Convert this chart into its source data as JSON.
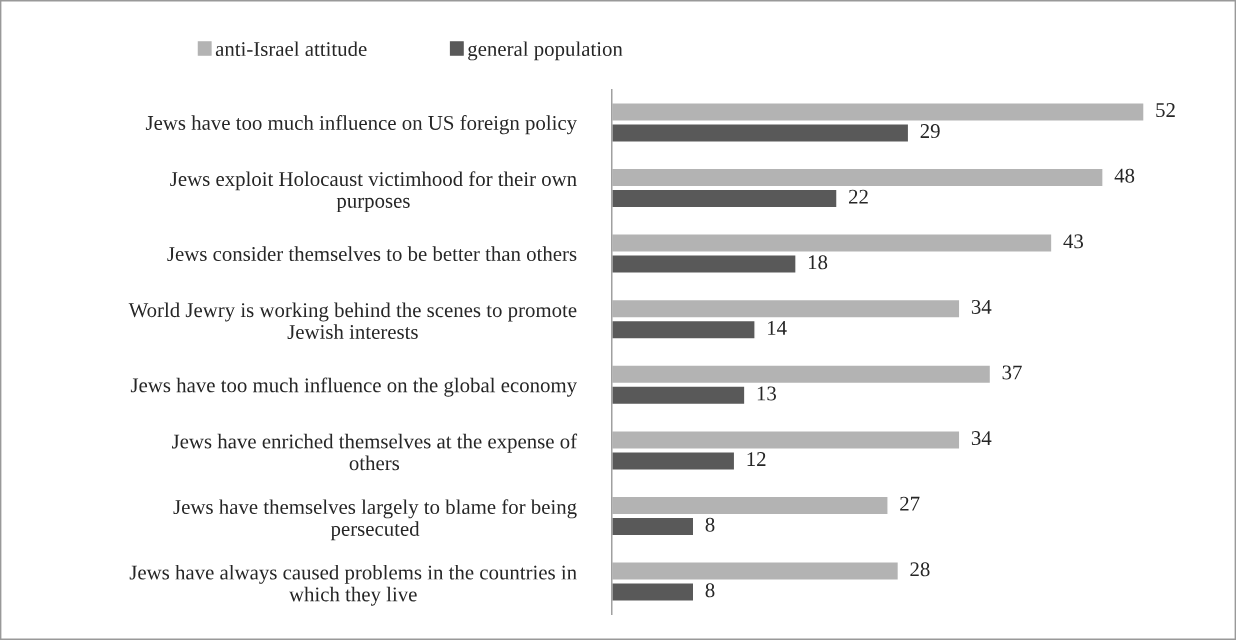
{
  "chart_data": {
    "type": "bar",
    "orientation": "horizontal",
    "categories": [
      "Jews have too much influence on US foreign policy",
      "Jews exploit Holocaust victimhood for their own\npurposes",
      "Jews consider themselves to be better than others",
      "World Jewry is working behind the scenes to promote\nJewish interests",
      "Jews have too much influence on the global economy",
      "Jews have enriched themselves at the expense of\nothers",
      "Jews have themselves largely to blame for being\npersecuted",
      "Jews have always caused problems in the countries in\nwhich they live"
    ],
    "series": [
      {
        "name": "anti-Israel attitude",
        "color": "#b3b3b3",
        "values": [
          52,
          48,
          43,
          34,
          37,
          34,
          27,
          28
        ]
      },
      {
        "name": "general population",
        "color": "#595959",
        "values": [
          29,
          22,
          18,
          14,
          13,
          12,
          8,
          8
        ]
      }
    ],
    "data_labels": true,
    "legend": "top",
    "grid": false,
    "tick_labels": "y"
  }
}
